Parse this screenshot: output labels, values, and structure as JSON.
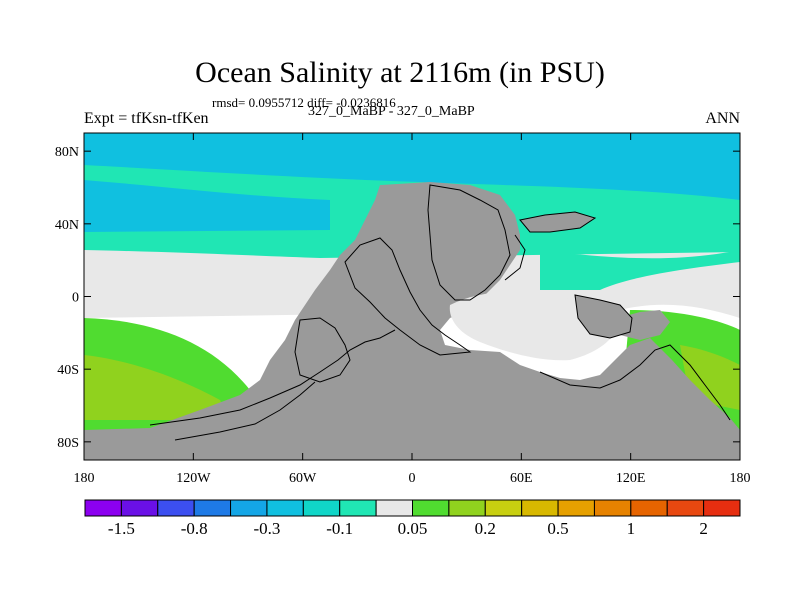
{
  "chart_data": {
    "type": "heatmap",
    "title": "Ocean Salinity at 2116m (in PSU)",
    "stats_line": "rmsd= 0.0955712 diff= -0.0236816",
    "left_label": "Expt = tfKsn-tfKen",
    "center_label": "327_0_MaBP - 327_0_MaBP",
    "right_label": "ANN",
    "x_axis": {
      "range": [
        -180,
        180
      ],
      "ticks": [
        {
          "value": -180,
          "label": "180"
        },
        {
          "value": -120,
          "label": "120W"
        },
        {
          "value": -60,
          "label": "60W"
        },
        {
          "value": 0,
          "label": "0"
        },
        {
          "value": 60,
          "label": "60E"
        },
        {
          "value": 120,
          "label": "120E"
        },
        {
          "value": 180,
          "label": "180"
        }
      ]
    },
    "y_axis": {
      "range": [
        -90,
        90
      ],
      "ticks": [
        {
          "value": 80,
          "label": "80N"
        },
        {
          "value": 40,
          "label": "40N"
        },
        {
          "value": 0,
          "label": "0"
        },
        {
          "value": -40,
          "label": "40S"
        },
        {
          "value": -80,
          "label": "80S"
        }
      ]
    },
    "colorbar": {
      "colors": [
        "#8c00f0",
        "#6a10e6",
        "#3c4ff0",
        "#1e7ae6",
        "#14a6e6",
        "#10c0e0",
        "#10d6c8",
        "#20e6b4",
        "#e8e8e8",
        "#50dc30",
        "#90d21e",
        "#c8cf10",
        "#d8b800",
        "#e6a000",
        "#e68200",
        "#e66400",
        "#e84810",
        "#e62e10"
      ],
      "labels": [
        {
          "after_box": 1,
          "text": "-1.5"
        },
        {
          "after_box": 3,
          "text": "-0.8"
        },
        {
          "after_box": 5,
          "text": "-0.3"
        },
        {
          "after_box": 7,
          "text": "-0.1"
        },
        {
          "after_box": 9,
          "text": "0.05"
        },
        {
          "after_box": 11,
          "text": "0.2"
        },
        {
          "after_box": 13,
          "text": "0.5"
        },
        {
          "after_box": 15,
          "text": "1"
        },
        {
          "after_box": 17,
          "text": "2"
        }
      ]
    },
    "field_regions": [
      {
        "name": "north-band",
        "color": "#10c0e0",
        "approx_value": "-0.3 to -0.1"
      },
      {
        "name": "mid-north-band",
        "color": "#20e6b4",
        "approx_value": "-0.1 to 0.05"
      },
      {
        "name": "equatorial-band",
        "color": "#e8e8e8",
        "approx_value": "-0.05 to 0.05"
      },
      {
        "name": "south-pacific",
        "color": "#50dc30",
        "approx_value": "0.05 to 0.2"
      },
      {
        "name": "southern-ocean",
        "color": "#90d21e",
        "approx_value": "0.2 to 0.3"
      },
      {
        "name": "land",
        "color": "#9a9a9a",
        "approx_value": "missing"
      }
    ]
  }
}
